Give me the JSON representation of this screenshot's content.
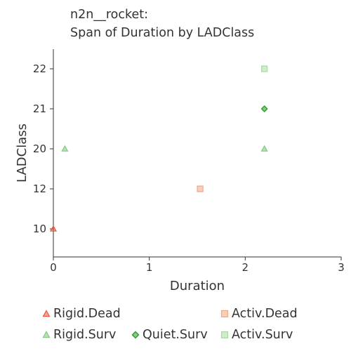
{
  "title": {
    "line1": "n2n__rocket:",
    "line2": "Span of Duration by LADClass"
  },
  "chart_data": {
    "type": "scatter",
    "xlabel": "Duration",
    "ylabel": "LADClass",
    "xlim": [
      0,
      3
    ],
    "x_ticks": [
      "0",
      "1",
      "2",
      "3"
    ],
    "y_categories": [
      "10",
      "12",
      "20",
      "21",
      "22"
    ],
    "grid": false,
    "legend_position": "bottom",
    "series": [
      {
        "name": "Rigid.Dead",
        "marker": "triangle",
        "color": "#e8593c",
        "points": [
          {
            "x": 0.0,
            "y": "10"
          }
        ]
      },
      {
        "name": "Activ.Dead",
        "marker": "square",
        "color": "#f4a582",
        "points": [
          {
            "x": 1.53,
            "y": "12"
          }
        ]
      },
      {
        "name": "Rigid.Surv",
        "marker": "triangle",
        "color": "#7fc97f",
        "points": [
          {
            "x": 0.12,
            "y": "20"
          },
          {
            "x": 2.2,
            "y": "20"
          }
        ]
      },
      {
        "name": "Quiet.Surv",
        "marker": "diamond",
        "color": "#2a9d2a",
        "points": [
          {
            "x": 2.2,
            "y": "21"
          }
        ]
      },
      {
        "name": "Activ.Surv",
        "marker": "square",
        "color": "#a6dba0",
        "points": [
          {
            "x": 2.2,
            "y": "22"
          }
        ]
      }
    ]
  }
}
